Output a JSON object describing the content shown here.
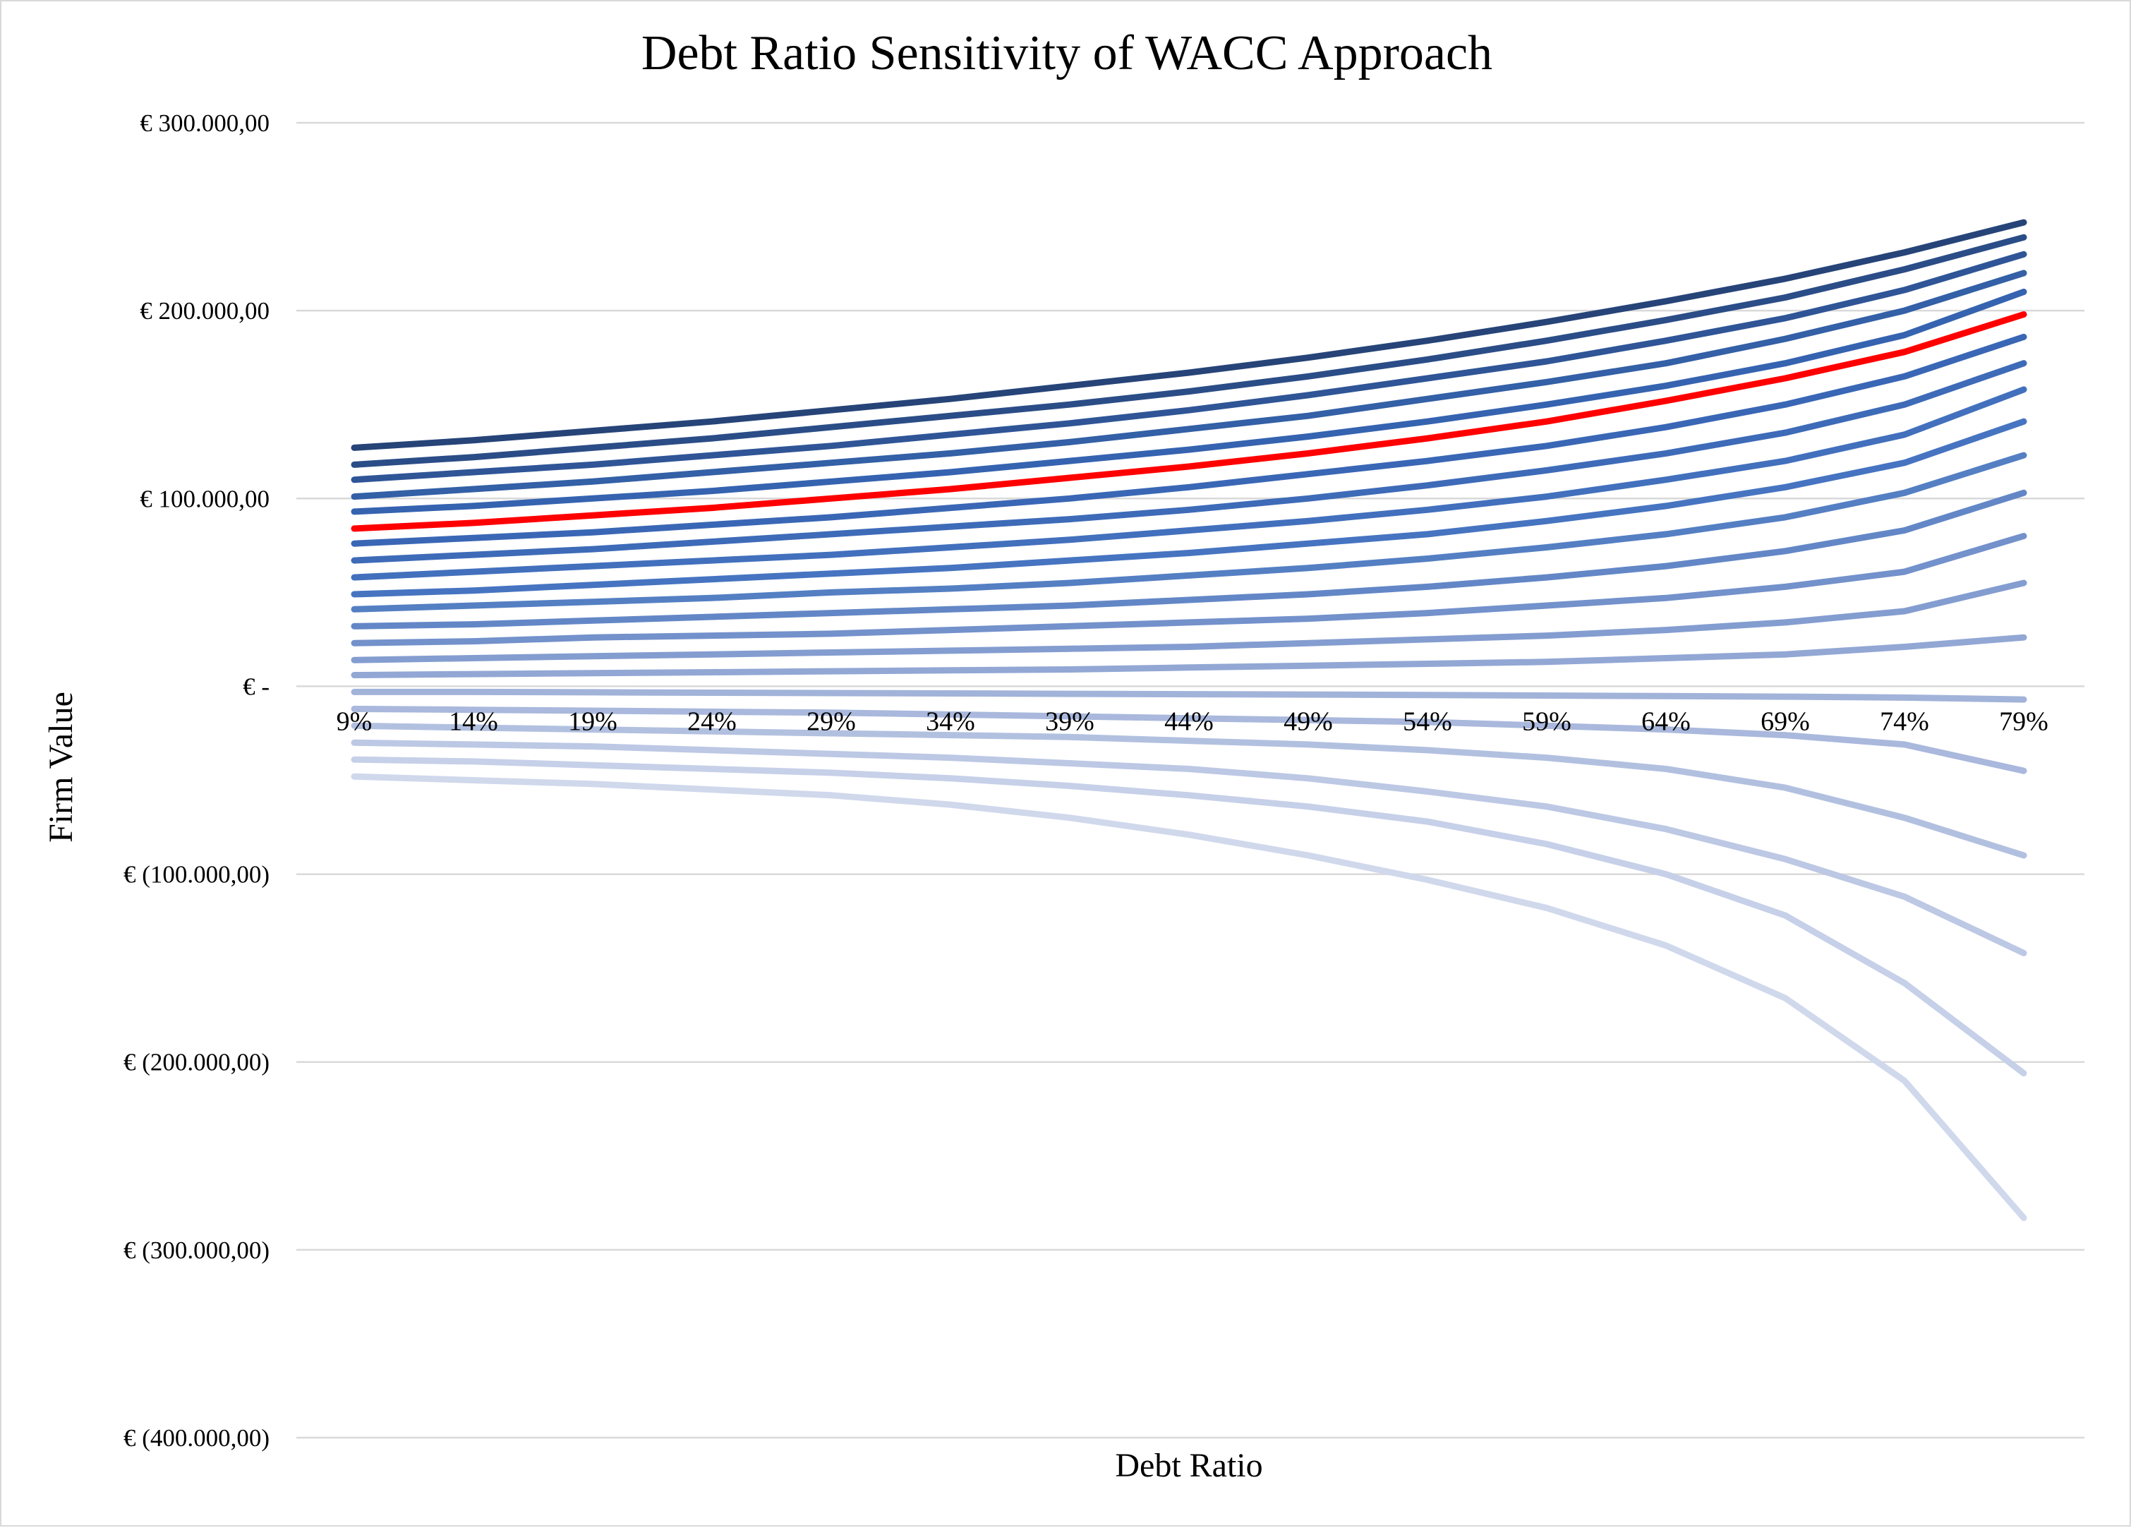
{
  "chart_data": {
    "type": "line",
    "title": "Debt Ratio Sensitivity of WACC Approach",
    "xlabel": "Debt Ratio",
    "ylabel": "Firm Value",
    "categories": [
      "9%",
      "14%",
      "19%",
      "24%",
      "29%",
      "34%",
      "39%",
      "44%",
      "49%",
      "54%",
      "59%",
      "64%",
      "69%",
      "74%",
      "79%"
    ],
    "ylim": [
      -400000,
      300000
    ],
    "yticks": [
      {
        "value": 300000,
        "label": "€ 300.000,00"
      },
      {
        "value": 200000,
        "label": "€ 200.000,00"
      },
      {
        "value": 100000,
        "label": "€ 100.000,00"
      },
      {
        "value": 0,
        "label": "€ -"
      },
      {
        "value": -100000,
        "label": "€ (100.000,00)"
      },
      {
        "value": -200000,
        "label": "€ (200.000,00)"
      },
      {
        "value": -300000,
        "label": "€ (300.000,00)"
      },
      {
        "value": -400000,
        "label": "€ (400.000,00)"
      }
    ],
    "grid": true,
    "legend": "none",
    "highlight_color": "#ff0000",
    "series": [
      {
        "color": "#264478",
        "values": [
          127000,
          131000,
          136000,
          141000,
          147000,
          153000,
          160000,
          167000,
          175000,
          184000,
          194000,
          205000,
          217000,
          231000,
          247000
        ]
      },
      {
        "color": "#2b4d87",
        "values": [
          118000,
          122000,
          127000,
          132000,
          138000,
          144000,
          150000,
          157000,
          165000,
          174000,
          184000,
          195000,
          207000,
          222000,
          239000
        ]
      },
      {
        "color": "#2f5597",
        "values": [
          110000,
          114000,
          118000,
          123000,
          128000,
          134000,
          140000,
          147000,
          155000,
          164000,
          173000,
          184000,
          196000,
          211000,
          230000
        ]
      },
      {
        "color": "#3360a6",
        "values": [
          101000,
          105000,
          109000,
          114000,
          119000,
          124000,
          130000,
          137000,
          144000,
          153000,
          162000,
          172000,
          185000,
          200000,
          220000
        ]
      },
      {
        "color": "#3563b0",
        "values": [
          93000,
          96000,
          100000,
          104000,
          109000,
          114000,
          120000,
          126000,
          133000,
          141000,
          150000,
          160000,
          172000,
          187000,
          210000
        ]
      },
      {
        "color": "#ff0000",
        "highlight": true,
        "values": [
          84000,
          87000,
          91000,
          95000,
          100000,
          105000,
          111000,
          117000,
          124000,
          132000,
          141000,
          152000,
          164000,
          178000,
          198000
        ]
      },
      {
        "color": "#3a67b5",
        "values": [
          76000,
          79000,
          82000,
          86000,
          90000,
          95000,
          100000,
          106000,
          113000,
          120000,
          128000,
          138000,
          150000,
          165000,
          186000
        ]
      },
      {
        "color": "#3e6bb8",
        "values": [
          67000,
          70000,
          73000,
          77000,
          81000,
          85000,
          89000,
          94000,
          100000,
          107000,
          115000,
          124000,
          135000,
          150000,
          172000
        ]
      },
      {
        "color": "#4270bd",
        "values": [
          58000,
          61000,
          64000,
          67000,
          70000,
          74000,
          78000,
          83000,
          88000,
          94000,
          101000,
          110000,
          120000,
          134000,
          158000
        ]
      },
      {
        "color": "#4674c1",
        "values": [
          49000,
          51000,
          54000,
          57000,
          60000,
          63000,
          67000,
          71000,
          76000,
          81000,
          88000,
          96000,
          106000,
          119000,
          141000
        ]
      },
      {
        "color": "#547fc3",
        "values": [
          41000,
          43000,
          45000,
          47000,
          50000,
          52000,
          55000,
          59000,
          63000,
          68000,
          74000,
          81000,
          90000,
          103000,
          123000
        ]
      },
      {
        "color": "#6387c6",
        "values": [
          32000,
          33000,
          35000,
          37000,
          39000,
          41000,
          43000,
          46000,
          49000,
          53000,
          58000,
          64000,
          72000,
          83000,
          103000
        ]
      },
      {
        "color": "#7391cb",
        "values": [
          23000,
          24000,
          26000,
          27000,
          28000,
          30000,
          32000,
          34000,
          36000,
          39000,
          43000,
          47000,
          53000,
          61000,
          80000
        ]
      },
      {
        "color": "#849dd0",
        "values": [
          14000,
          15000,
          16000,
          17000,
          18000,
          19000,
          20000,
          21000,
          23000,
          25000,
          27000,
          30000,
          34000,
          40000,
          55000
        ]
      },
      {
        "color": "#92a7d4",
        "values": [
          6000,
          6500,
          7000,
          7500,
          8000,
          8500,
          9000,
          10000,
          11000,
          12000,
          13000,
          15000,
          17000,
          21000,
          26000
        ]
      },
      {
        "color": "#a2b3d9",
        "values": [
          -3000,
          -3000,
          -3200,
          -3400,
          -3600,
          -3800,
          -4000,
          -4200,
          -4400,
          -4600,
          -4900,
          -5200,
          -5500,
          -6000,
          -7000
        ]
      },
      {
        "color": "#a9b8dc",
        "values": [
          -12000,
          -12500,
          -13000,
          -13500,
          -14000,
          -15000,
          -16000,
          -17000,
          -18000,
          -19000,
          -21000,
          -23000,
          -26000,
          -31000,
          -45000
        ]
      },
      {
        "color": "#b2c0e0",
        "values": [
          -21000,
          -22000,
          -23000,
          -24000,
          -25000,
          -26000,
          -27000,
          -29000,
          -31000,
          -34000,
          -38000,
          -44000,
          -54000,
          -70000,
          -90000
        ]
      },
      {
        "color": "#bcc8e4",
        "values": [
          -30000,
          -31000,
          -32000,
          -34000,
          -36000,
          -38000,
          -41000,
          -44000,
          -49000,
          -56000,
          -64000,
          -76000,
          -92000,
          -112000,
          -142000
        ]
      },
      {
        "color": "#c6d0e8",
        "values": [
          -39000,
          -40000,
          -42000,
          -44000,
          -46000,
          -49000,
          -53000,
          -58000,
          -64000,
          -72000,
          -84000,
          -100000,
          -122000,
          -158000,
          -206000
        ]
      },
      {
        "color": "#d0d8ec",
        "values": [
          -48000,
          -50000,
          -52000,
          -55000,
          -58000,
          -63000,
          -70000,
          -79000,
          -90000,
          -103000,
          -118000,
          -138000,
          -166000,
          -210000,
          -283000
        ]
      }
    ]
  }
}
